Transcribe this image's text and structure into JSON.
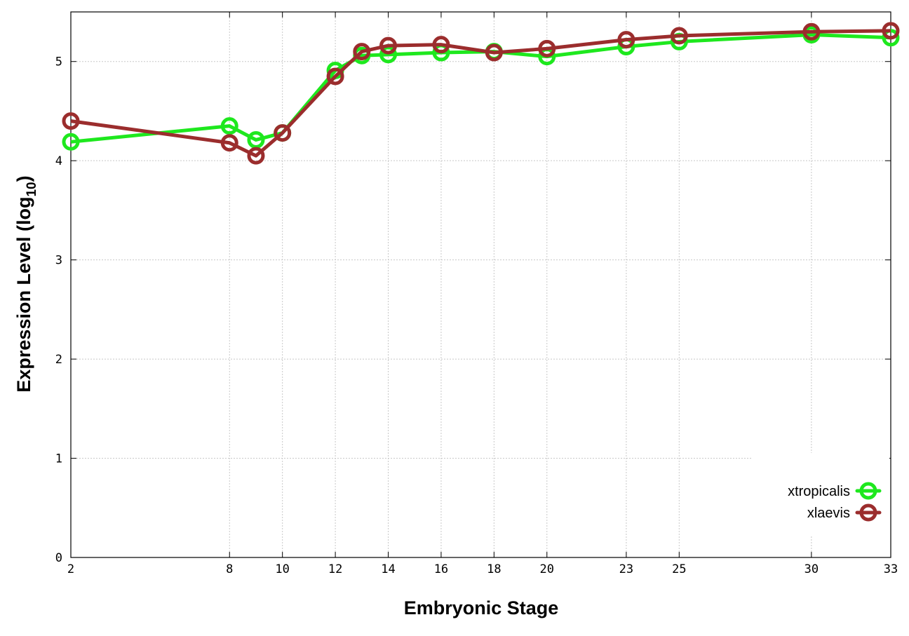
{
  "chart_data": {
    "type": "line",
    "x": [
      2,
      8,
      9,
      10,
      12,
      13,
      14,
      16,
      18,
      20,
      23,
      25,
      30,
      33
    ],
    "series": [
      {
        "name": "xtropicalis",
        "color": "#1ee81e",
        "values": [
          4.19,
          4.35,
          4.21,
          4.28,
          4.91,
          5.06,
          5.07,
          5.09,
          5.1,
          5.05,
          5.15,
          5.2,
          5.27,
          5.24
        ]
      },
      {
        "name": "xlaevis",
        "color": "#9b2d2d",
        "values": [
          4.4,
          4.18,
          4.05,
          4.28,
          4.85,
          5.1,
          5.16,
          5.17,
          5.09,
          5.13,
          5.22,
          5.26,
          5.3,
          5.31
        ]
      }
    ],
    "xlabel": "Embryonic Stage",
    "ylabel_main": "Expression Level (log",
    "ylabel_sub": "10",
    "ylabel_close": ")",
    "xlim": [
      2,
      33
    ],
    "ylim": [
      0,
      5.5
    ],
    "xticks": [
      2,
      8,
      10,
      12,
      14,
      16,
      18,
      20,
      23,
      25,
      30,
      33
    ],
    "yticks": [
      0,
      1,
      2,
      3,
      4,
      5
    ],
    "grid": true,
    "legend_position": "bottom-right"
  }
}
